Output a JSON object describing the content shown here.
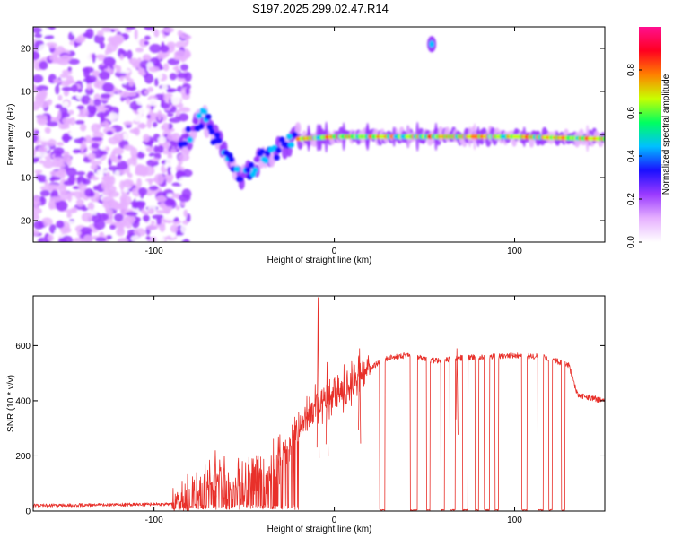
{
  "title": "S197.2025.299.02.47.R14",
  "chart_data": [
    {
      "type": "heatmap",
      "name": "spectrogram",
      "xlabel": "Height of straight line (km)",
      "ylabel": "Frequency (Hz)",
      "xlim": [
        -167,
        150
      ],
      "ylim": [
        -25,
        25
      ],
      "xticks": [
        -100,
        0,
        100
      ],
      "xtick_labels": [
        "-100",
        "0",
        "100"
      ],
      "yticks": [
        -20,
        -10,
        0,
        10,
        20
      ],
      "ytick_labels": [
        "-20",
        "-10",
        "0",
        "10",
        "20"
      ],
      "noise_region_km": [
        -167,
        -87
      ],
      "signal_track": [
        {
          "x": -85,
          "f": -4
        },
        {
          "x": -78,
          "f": 2
        },
        {
          "x": -72,
          "f": 4
        },
        {
          "x": -65,
          "f": -2
        },
        {
          "x": -58,
          "f": -6
        },
        {
          "x": -52,
          "f": -11
        },
        {
          "x": -45,
          "f": -8
        },
        {
          "x": -38,
          "f": -5
        },
        {
          "x": -30,
          "f": -3
        },
        {
          "x": -20,
          "f": -1
        },
        {
          "x": 0,
          "f": -0.5
        },
        {
          "x": 50,
          "f": -0.5
        },
        {
          "x": 100,
          "f": -0.5
        },
        {
          "x": 150,
          "f": -1
        }
      ],
      "spur": {
        "x": 54,
        "f": 21
      },
      "colorbar": {
        "label": "Normalized spectral amplitude",
        "range": [
          0,
          1
        ],
        "ticks": [
          0.0,
          0.2,
          0.4,
          0.6,
          0.8
        ],
        "tick_labels": [
          "0.0",
          "0.2",
          "0.4",
          "0.6",
          "0.8"
        ],
        "colors": [
          "#ffffff",
          "#e6b0ff",
          "#9a3aff",
          "#1a10ff",
          "#00c0ff",
          "#00ff60",
          "#c8ff00",
          "#ff8000",
          "#ff0020",
          "#ff1090"
        ]
      }
    },
    {
      "type": "line",
      "name": "snr",
      "xlabel": "Height of straight line (km)",
      "ylabel": "SNR (10 * v/v)",
      "xlim": [
        -167,
        150
      ],
      "ylim": [
        0,
        780
      ],
      "xticks": [
        -100,
        0,
        100
      ],
      "xtick_labels": [
        "-100",
        "0",
        "100"
      ],
      "yticks": [
        0,
        200,
        400,
        600
      ],
      "ytick_labels": [
        "0",
        "200",
        "400",
        "600"
      ],
      "color": "#e8302a",
      "trend": [
        {
          "x": -167,
          "y": 20
        },
        {
          "x": -90,
          "y": 25
        },
        {
          "x": -80,
          "y": 60
        },
        {
          "x": -70,
          "y": 110
        },
        {
          "x": -60,
          "y": 90
        },
        {
          "x": -50,
          "y": 100
        },
        {
          "x": -40,
          "y": 140
        },
        {
          "x": -30,
          "y": 200
        },
        {
          "x": -20,
          "y": 300
        },
        {
          "x": -10,
          "y": 380
        },
        {
          "x": 0,
          "y": 420
        },
        {
          "x": 10,
          "y": 470
        },
        {
          "x": 20,
          "y": 520
        },
        {
          "x": 30,
          "y": 555
        },
        {
          "x": 40,
          "y": 565
        },
        {
          "x": 55,
          "y": 545
        },
        {
          "x": 70,
          "y": 555
        },
        {
          "x": 85,
          "y": 560
        },
        {
          "x": 100,
          "y": 565
        },
        {
          "x": 115,
          "y": 560
        },
        {
          "x": 130,
          "y": 530
        },
        {
          "x": 135,
          "y": 420
        },
        {
          "x": 150,
          "y": 400
        }
      ],
      "spikes": [
        {
          "x": -9,
          "y": 775
        },
        {
          "x": -31,
          "y": 270
        },
        {
          "x": -66,
          "y": 220
        },
        {
          "x": -61,
          "y": 200
        },
        {
          "x": -45,
          "y": 190
        },
        {
          "x": -4,
          "y": 540
        },
        {
          "x": 14,
          "y": 590
        },
        {
          "x": 68,
          "y": 590
        }
      ],
      "dropouts_km": [
        [
          25,
          28
        ],
        [
          42,
          46
        ],
        [
          51,
          53
        ],
        [
          59,
          61
        ],
        [
          64,
          67
        ],
        [
          71,
          74
        ],
        [
          78,
          80
        ],
        [
          83,
          86
        ],
        [
          89,
          91
        ],
        [
          104,
          107
        ],
        [
          113,
          116
        ],
        [
          119,
          121
        ],
        [
          126,
          128
        ]
      ],
      "noise_amplitude": 35,
      "seed": 197
    }
  ]
}
